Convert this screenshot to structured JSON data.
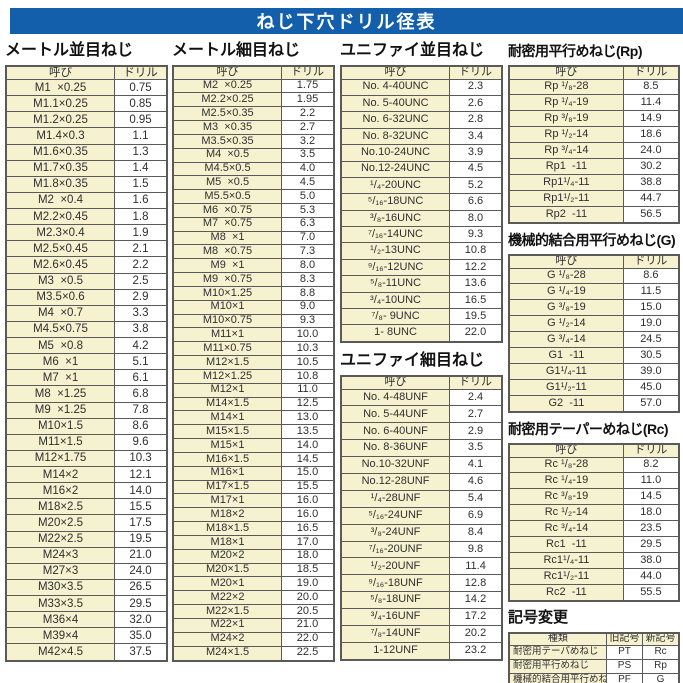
{
  "title": "ねじ下穴ドリル径表",
  "colors": {
    "accent_blue": "#135fab",
    "cream": "#f6f2d0",
    "border_gray": "#5a5a5a"
  },
  "tables": {
    "metric_coarse": {
      "title": "メートル並目ねじ",
      "columns": [
        "呼び",
        "ドリル"
      ],
      "rows": [
        [
          "M1  ×0.25",
          "0.75"
        ],
        [
          "M1.1×0.25",
          "0.85"
        ],
        [
          "M1.2×0.25",
          "0.95"
        ],
        [
          "M1.4×0.3",
          "1.1"
        ],
        [
          "M1.6×0.35",
          "1.3"
        ],
        [
          "M1.7×0.35",
          "1.4"
        ],
        [
          "M1.8×0.35",
          "1.5"
        ],
        [
          "M2  ×0.4",
          "1.6"
        ],
        [
          "M2.2×0.45",
          "1.8"
        ],
        [
          "M2.3×0.4",
          "1.9"
        ],
        [
          "M2.5×0.45",
          "2.1"
        ],
        [
          "M2.6×0.45",
          "2.2"
        ],
        [
          "M3  ×0.5",
          "2.5"
        ],
        [
          "M3.5×0.6",
          "2.9"
        ],
        [
          "M4  ×0.7",
          "3.3"
        ],
        [
          "M4.5×0.75",
          "3.8"
        ],
        [
          "M5  ×0.8",
          "4.2"
        ],
        [
          "M6  ×1",
          "5.1"
        ],
        [
          "M7  ×1",
          "6.1"
        ],
        [
          "M8  ×1.25",
          "6.8"
        ],
        [
          "M9  ×1.25",
          "7.8"
        ],
        [
          "M10×1.5",
          "8.6"
        ],
        [
          "M11×1.5",
          "9.6"
        ],
        [
          "M12×1.75",
          "10.3"
        ],
        [
          "M14×2",
          "12.1"
        ],
        [
          "M16×2",
          "14.0"
        ],
        [
          "M18×2.5",
          "15.5"
        ],
        [
          "M20×2.5",
          "17.5"
        ],
        [
          "M22×2.5",
          "19.5"
        ],
        [
          "M24×3",
          "21.0"
        ],
        [
          "M27×3",
          "24.0"
        ],
        [
          "M30×3.5",
          "26.5"
        ],
        [
          "M33×3.5",
          "29.5"
        ],
        [
          "M36×4",
          "32.0"
        ],
        [
          "M39×4",
          "35.0"
        ],
        [
          "M42×4.5",
          "37.5"
        ]
      ]
    },
    "metric_fine": {
      "title": "メートル細目ねじ",
      "columns": [
        "呼び",
        "ドリル"
      ],
      "rows": [
        [
          "M2  ×0.25",
          "1.75"
        ],
        [
          "M2.2×0.25",
          "1.95"
        ],
        [
          "M2.5×0.35",
          "2.2"
        ],
        [
          "M3  ×0.35",
          "2.7"
        ],
        [
          "M3.5×0.35",
          "3.2"
        ],
        [
          "M4  ×0.5",
          "3.5"
        ],
        [
          "M4.5×0.5",
          "4.0"
        ],
        [
          "M5  ×0.5",
          "4.5"
        ],
        [
          "M5.5×0.5",
          "5.0"
        ],
        [
          "M6  ×0.75",
          "5.3"
        ],
        [
          "M7  ×0.75",
          "6.3"
        ],
        [
          "M8  ×1",
          "7.0"
        ],
        [
          "M8  ×0.75",
          "7.3"
        ],
        [
          "M9  ×1",
          "8.0"
        ],
        [
          "M9  ×0.75",
          "8.3"
        ],
        [
          "M10×1.25",
          "8.8"
        ],
        [
          "M10×1",
          "9.0"
        ],
        [
          "M10×0.75",
          "9.3"
        ],
        [
          "M11×1",
          "10.0"
        ],
        [
          "M11×0.75",
          "10.3"
        ],
        [
          "M12×1.5",
          "10.5"
        ],
        [
          "M12×1.25",
          "10.8"
        ],
        [
          "M12×1",
          "11.0"
        ],
        [
          "M14×1.5",
          "12.5"
        ],
        [
          "M14×1",
          "13.0"
        ],
        [
          "M15×1.5",
          "13.5"
        ],
        [
          "M15×1",
          "14.0"
        ],
        [
          "M16×1.5",
          "14.5"
        ],
        [
          "M16×1",
          "15.0"
        ],
        [
          "M17×1.5",
          "15.5"
        ],
        [
          "M17×1",
          "16.0"
        ],
        [
          "M18×2",
          "16.0"
        ],
        [
          "M18×1.5",
          "16.5"
        ],
        [
          "M18×1",
          "17.0"
        ],
        [
          "M20×2",
          "18.0"
        ],
        [
          "M20×1.5",
          "18.5"
        ],
        [
          "M20×1",
          "19.0"
        ],
        [
          "M22×2",
          "20.0"
        ],
        [
          "M22×1.5",
          "20.5"
        ],
        [
          "M22×1",
          "21.0"
        ],
        [
          "M24×2",
          "22.0"
        ],
        [
          "M24×1.5",
          "22.5"
        ]
      ]
    },
    "unified_coarse": {
      "title": "ユニファイ並目ねじ",
      "columns": [
        "呼び",
        "ドリル"
      ],
      "rows": [
        [
          "No. 4-40UNC",
          "2.3"
        ],
        [
          "No. 5-40UNC",
          "2.6"
        ],
        [
          "No. 6-32UNC",
          "2.8"
        ],
        [
          "No. 8-32UNC",
          "3.4"
        ],
        [
          "No.10-24UNC",
          "3.9"
        ],
        [
          "No.12-24UNC",
          "4.5"
        ],
        [
          "¹/₄-20UNC",
          "5.2"
        ],
        [
          "⁵/₁₆-18UNC",
          "6.6"
        ],
        [
          "³/₈-16UNC",
          "8.0"
        ],
        [
          "⁷/₁₆-14UNC",
          "9.3"
        ],
        [
          "¹/₂-13UNC",
          "10.8"
        ],
        [
          "⁹/₁₆-12UNC",
          "12.2"
        ],
        [
          "⁵/₈-11UNC",
          "13.6"
        ],
        [
          "³/₄-10UNC",
          "16.5"
        ],
        [
          "⁷/₈- 9UNC",
          "19.5"
        ],
        [
          "1- 8UNC",
          "22.0"
        ]
      ]
    },
    "unified_fine": {
      "title": "ユニファイ細目ねじ",
      "columns": [
        "呼び",
        "ドリル"
      ],
      "rows": [
        [
          "No. 4-48UNF",
          "2.4"
        ],
        [
          "No. 5-44UNF",
          "2.7"
        ],
        [
          "No. 6-40UNF",
          "2.9"
        ],
        [
          "No. 8-36UNF",
          "3.5"
        ],
        [
          "No.10-32UNF",
          "4.1"
        ],
        [
          "No.12-28UNF",
          "4.6"
        ],
        [
          "¹/₄-28UNF",
          "5.4"
        ],
        [
          "⁵/₁₆-24UNF",
          "6.9"
        ],
        [
          "³/₈-24UNF",
          "8.4"
        ],
        [
          "⁷/₁₆-20UNF",
          "9.8"
        ],
        [
          "¹/₂-20UNF",
          "11.4"
        ],
        [
          "⁹/₁₆-18UNF",
          "12.8"
        ],
        [
          "⁵/₈-18UNF",
          "14.2"
        ],
        [
          "³/₄-16UNF",
          "17.2"
        ],
        [
          "⁷/₈-14UNF",
          "20.2"
        ],
        [
          "1-12UNF",
          "23.2"
        ]
      ]
    },
    "rp": {
      "title": "耐密用平行めねじ(Rp)",
      "columns": [
        "呼び",
        "ドリル"
      ],
      "rows": [
        [
          "Rp ¹/₈-28",
          "8.5"
        ],
        [
          "Rp ¹/₄-19",
          "11.4"
        ],
        [
          "Rp ³/₈-19",
          "14.9"
        ],
        [
          "Rp ¹/₂-14",
          "18.6"
        ],
        [
          "Rp ³/₄-14",
          "24.0"
        ],
        [
          "Rp1  -11",
          "30.2"
        ],
        [
          "Rp1¹/₄-11",
          "38.8"
        ],
        [
          "Rp1¹/₂-11",
          "44.7"
        ],
        [
          "Rp2  -11",
          "56.5"
        ]
      ]
    },
    "g": {
      "title": "機械的結合用平行めねじ(G)",
      "columns": [
        "呼び",
        "ドリル"
      ],
      "rows": [
        [
          "G ¹/₈-28",
          "8.6"
        ],
        [
          "G ¹/₄-19",
          "11.5"
        ],
        [
          "G ³/₈-19",
          "15.0"
        ],
        [
          "G ¹/₂-14",
          "19.0"
        ],
        [
          "G ³/₄-14",
          "24.5"
        ],
        [
          "G1  -11",
          "30.5"
        ],
        [
          "G1¹/₄-11",
          "39.0"
        ],
        [
          "G1¹/₂-11",
          "45.0"
        ],
        [
          "G2  -11",
          "57.0"
        ]
      ]
    },
    "rc": {
      "title": "耐密用テーパーめねじ(Rc)",
      "columns": [
        "呼び",
        "ドリル"
      ],
      "rows": [
        [
          "Rc ¹/₈-28",
          "8.2"
        ],
        [
          "Rc ¹/₄-19",
          "11.0"
        ],
        [
          "Rc ³/₈-19",
          "14.5"
        ],
        [
          "Rc ¹/₂-14",
          "18.0"
        ],
        [
          "Rc ³/₄-14",
          "23.5"
        ],
        [
          "Rc1  -11",
          "29.5"
        ],
        [
          "Rc1¹/₄-11",
          "38.0"
        ],
        [
          "Rc1¹/₂-11",
          "44.0"
        ],
        [
          "Rc2  -11",
          "55.5"
        ]
      ]
    },
    "symbol_change": {
      "title": "記号変更",
      "columns": [
        "種類",
        "旧記号",
        "新記号"
      ],
      "rows": [
        [
          "耐密用テーパめねじ",
          "PT",
          "Rc"
        ],
        [
          "耐密用平行めねじ",
          "PS",
          "Rp"
        ],
        [
          "機械的結合用平行めねじ",
          "PF",
          "G"
        ]
      ]
    }
  }
}
